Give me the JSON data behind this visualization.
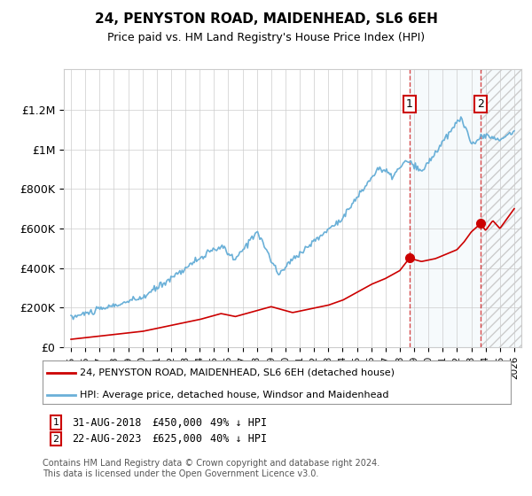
{
  "title": "24, PENYSTON ROAD, MAIDENHEAD, SL6 6EH",
  "subtitle": "Price paid vs. HM Land Registry's House Price Index (HPI)",
  "ylim": [
    0,
    1300000
  ],
  "yticks": [
    0,
    200000,
    400000,
    600000,
    800000,
    1000000,
    1200000
  ],
  "ytick_labels": [
    "£0",
    "£200K",
    "£400K",
    "£600K",
    "£800K",
    "£1M",
    "£1.2M"
  ],
  "hpi_color": "#6ab0d8",
  "sale_color": "#cc0000",
  "background_color": "#ffffff",
  "plot_bg_color": "#ffffff",
  "grid_color": "#cccccc",
  "sale1_year": 2018.67,
  "sale1_price": 450000,
  "sale2_year": 2023.65,
  "sale2_price": 625000,
  "legend_label1": "24, PENYSTON ROAD, MAIDENHEAD, SL6 6EH (detached house)",
  "legend_label2": "HPI: Average price, detached house, Windsor and Maidenhead",
  "footer": "Contains HM Land Registry data © Crown copyright and database right 2024.\nThis data is licensed under the Open Government Licence v3.0.",
  "xmin": 1994.5,
  "xmax": 2026.5
}
